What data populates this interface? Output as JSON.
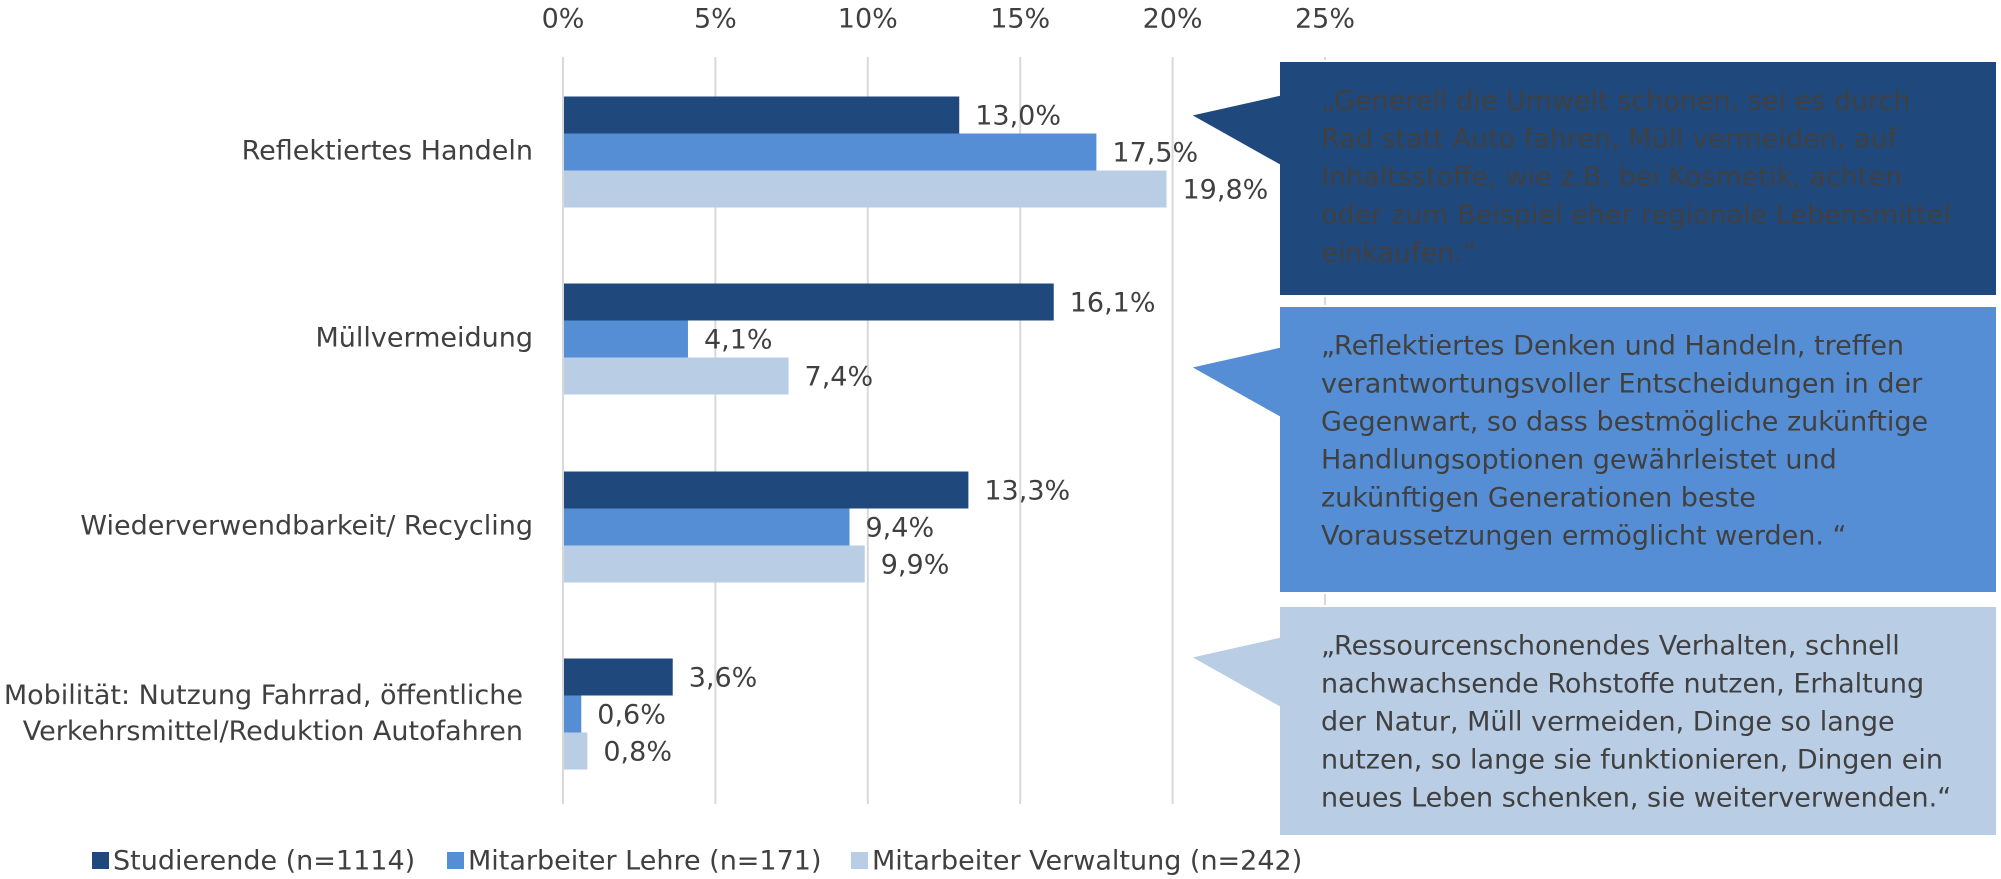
{
  "chart_data": {
    "type": "bar",
    "orientation": "horizontal",
    "categories": [
      "Reflektiertes Handeln",
      "Müllvermeidung",
      "Wiederverwendbarkeit/ Recycling",
      "Mobilität: Nutzung Fahrrad, öffentliche Verkehrsmittel/Reduktion Autofahren"
    ],
    "series": [
      {
        "name": "Studierende (n=1114)",
        "color": "#1f497d",
        "values": [
          13.0,
          16.1,
          13.3,
          3.6
        ],
        "value_labels": [
          "13,0%",
          "16,1%",
          "13,3%",
          "3,6%"
        ]
      },
      {
        "name": "Mitarbeiter Lehre (n=171)",
        "color": "#558ed5",
        "values": [
          17.5,
          4.1,
          9.4,
          0.6
        ],
        "value_labels": [
          "17,5%",
          "4,1%",
          "9,4%",
          "0,6%"
        ]
      },
      {
        "name": "Mitarbeiter Verwaltung (n=242)",
        "color": "#b9cde5",
        "values": [
          19.8,
          7.4,
          9.9,
          0.8
        ],
        "value_labels": [
          "19,8%",
          "7,4%",
          "9,9%",
          "0,8%"
        ]
      }
    ],
    "xlim": [
      0,
      25
    ],
    "xticks": [
      {
        "value": 0,
        "label": "0%"
      },
      {
        "value": 5,
        "label": "5%"
      },
      {
        "value": 10,
        "label": "10%"
      },
      {
        "value": 15,
        "label": "15%"
      },
      {
        "value": 20,
        "label": "20%"
      },
      {
        "value": 25,
        "label": "25%"
      }
    ],
    "grid": true,
    "legend": "bottom",
    "annotations": [
      {
        "color": "#1f497d",
        "text_color": "#ffffff",
        "lines": [
          "„Generell die Umwelt schonen, sei es durch",
          "Rad statt Auto fahren, Müll vermeiden, auf",
          "Inhaltsstoffe, wie z.B. bei Kosmetik, achten",
          "oder zum Beispiel eher regionale Lebensmittel",
          "einkaufen.“"
        ]
      },
      {
        "color": "#558ed5",
        "text_color": "#ffffff",
        "lines": [
          "„Reflektiertes Denken und Handeln, treffen",
          "verantwortungsvoller Entscheidungen in der",
          "Gegenwart, so dass bestmögliche zukünftige",
          "Handlungsoptionen gewährleistet und",
          "zukünftigen Generationen beste",
          "Voraussetzungen ermöglicht werden. “"
        ]
      },
      {
        "color": "#b9cde5",
        "text_color": "#1f3864",
        "lines": [
          "„Ressourcenschonendes Verhalten, schnell",
          "nachwachsende Rohstoffe nutzen, Erhaltung",
          "der Natur, Müll vermeiden, Dinge so lange",
          "nutzen, so lange sie funktionieren, Dingen ein",
          "neues Leben schenken, sie weiterverwenden.“"
        ]
      }
    ]
  }
}
